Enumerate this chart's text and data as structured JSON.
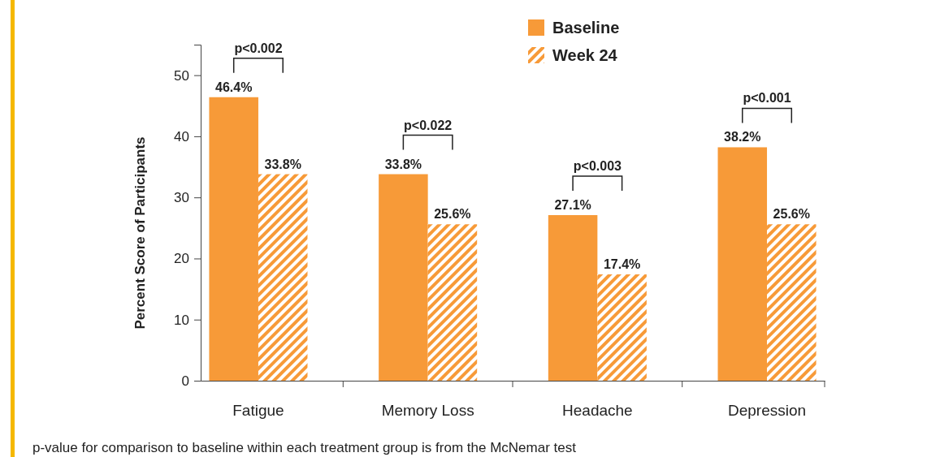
{
  "chart_data": {
    "type": "bar",
    "ylabel": "Percent Score of Participants",
    "categories": [
      "Fatigue",
      "Memory Loss",
      "Headache",
      "Depression"
    ],
    "series": [
      {
        "name": "Baseline",
        "color": "#f79a38",
        "values": [
          46.4,
          33.8,
          27.1,
          38.2
        ],
        "value_labels": [
          "46.4%",
          "33.8%",
          "27.1%",
          "38.2%"
        ]
      },
      {
        "name": "Week 24",
        "color": "#f79a38",
        "values": [
          33.8,
          25.6,
          17.4,
          25.6
        ],
        "value_labels": [
          "33.8%",
          "25.6%",
          "17.4%",
          "25.6%"
        ]
      }
    ],
    "ylim": [
      0,
      55
    ],
    "yticks": [
      0,
      10,
      20,
      30,
      40,
      50
    ],
    "grid": false,
    "legend": "top",
    "annotations": [
      "p<0.002",
      "p<0.022",
      "p<0.003",
      "p<0.001",
      "p-value for comparison to baseline within each treatment group is from the McNemar test"
    ]
  }
}
